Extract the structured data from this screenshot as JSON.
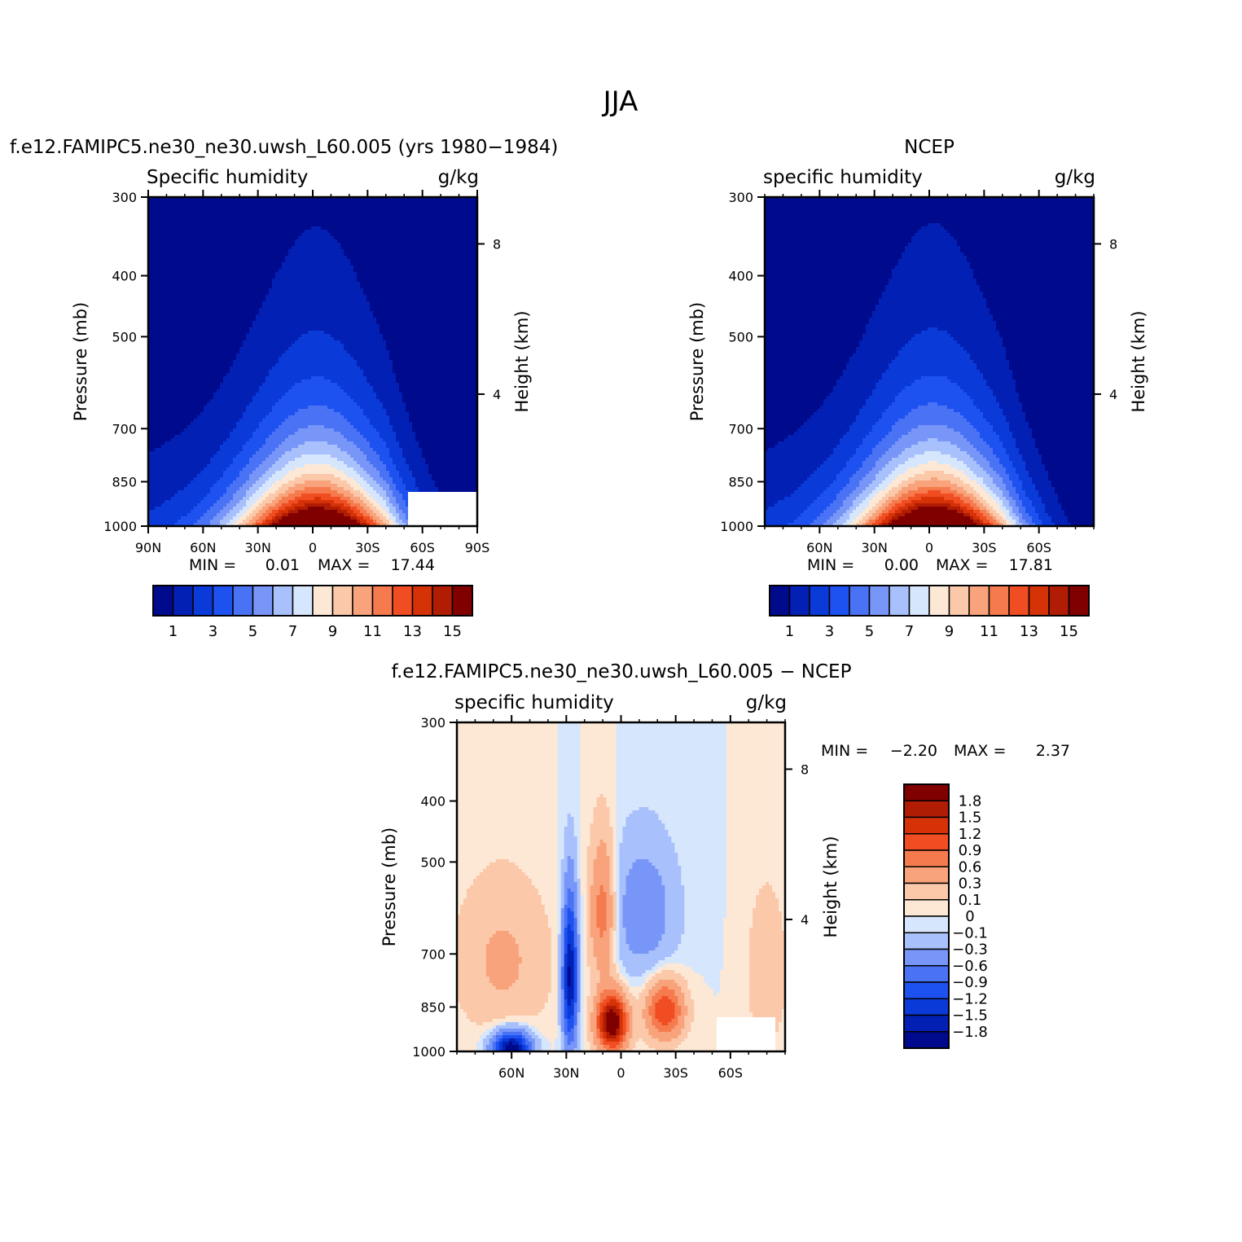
{
  "figure": {
    "title": "JJA"
  },
  "chart_data": [
    {
      "type": "heatmap",
      "id": "model",
      "title": "f.e12.FAMIPC5.ne30_ne30.uwsh_L60.005 (yrs 1980−1984)",
      "left_label": "Specific humidity",
      "right_label": "g/kg",
      "ylabel": "Pressure (mb)",
      "ylabel_right": "Height (km)",
      "x_ticks": [
        "90N",
        "60N",
        "30N",
        "0",
        "30S",
        "60S",
        "90S"
      ],
      "x_tick_lat": [
        90,
        60,
        30,
        0,
        -30,
        -60,
        -90
      ],
      "xlim": [
        90,
        -90
      ],
      "y_ticks": [
        300,
        400,
        500,
        700,
        850,
        1000
      ],
      "ylim": [
        300,
        1000
      ],
      "height_ticks": [
        8,
        4
      ],
      "height_tick_pressure": [
        356,
        617
      ],
      "min_label": "MIN =",
      "min_value": "0.01",
      "max_label": "MAX =",
      "max_value": "17.44",
      "peak": {
        "lat": -3,
        "value": 17.44
      },
      "masked_region": {
        "lat_from": -52,
        "lat_to": -86,
        "p_from": 928
      },
      "colorbar": {
        "levels": [
          1,
          2,
          3,
          4,
          5,
          6,
          7,
          8,
          9,
          10,
          11,
          12,
          13,
          14,
          15
        ],
        "labels": [
          "1",
          "3",
          "5",
          "7",
          "9",
          "11",
          "13",
          "15"
        ],
        "colors": [
          "#000a8c",
          "#0320b4",
          "#0a3ad8",
          "#1e52f0",
          "#4a72f5",
          "#7896f8",
          "#a8c0fb",
          "#d6e6fd",
          "#fde8d6",
          "#fbc8aa",
          "#f8a37c",
          "#f57a4e",
          "#f04e22",
          "#d63208",
          "#b01c04",
          "#800000"
        ]
      }
    },
    {
      "type": "heatmap",
      "id": "obs",
      "title": "NCEP",
      "left_label": "specific humidity",
      "right_label": "g/kg",
      "ylabel": "Pressure (mb)",
      "ylabel_right": "Height (km)",
      "x_ticks": [
        "60N",
        "30N",
        "0",
        "30S",
        "60S"
      ],
      "x_tick_lat": [
        60,
        30,
        0,
        -30,
        -60
      ],
      "xlim": [
        90,
        -90
      ],
      "y_ticks": [
        300,
        400,
        500,
        700,
        850,
        1000
      ],
      "ylim": [
        300,
        1000
      ],
      "height_ticks": [
        8,
        4
      ],
      "height_tick_pressure": [
        356,
        617
      ],
      "min_label": "MIN =",
      "min_value": "0.00",
      "max_label": "MAX =",
      "max_value": "17.81",
      "peak": {
        "lat": -3,
        "value": 17.81
      },
      "colorbar": {
        "levels": [
          1,
          2,
          3,
          4,
          5,
          6,
          7,
          8,
          9,
          10,
          11,
          12,
          13,
          14,
          15
        ],
        "labels": [
          "1",
          "3",
          "5",
          "7",
          "9",
          "11",
          "13",
          "15"
        ],
        "colors": [
          "#000a8c",
          "#0320b4",
          "#0a3ad8",
          "#1e52f0",
          "#4a72f5",
          "#7896f8",
          "#a8c0fb",
          "#d6e6fd",
          "#fde8d6",
          "#fbc8aa",
          "#f8a37c",
          "#f57a4e",
          "#f04e22",
          "#d63208",
          "#b01c04",
          "#800000"
        ]
      }
    },
    {
      "type": "heatmap",
      "id": "diff",
      "title": "f.e12.FAMIPC5.ne30_ne30.uwsh_L60.005 − NCEP",
      "left_label": "specific humidity",
      "right_label": "g/kg",
      "ylabel": "Pressure (mb)",
      "ylabel_right": "Height (km)",
      "x_ticks": [
        "60N",
        "30N",
        "0",
        "30S",
        "60S"
      ],
      "x_tick_lat": [
        60,
        30,
        0,
        -30,
        -60
      ],
      "xlim": [
        90,
        -90
      ],
      "y_ticks": [
        300,
        400,
        500,
        700,
        850,
        1000
      ],
      "ylim": [
        300,
        1000
      ],
      "height_ticks": [
        8,
        4
      ],
      "height_tick_pressure": [
        356,
        617
      ],
      "min_label": "MIN =",
      "min_value": "−2.20",
      "max_label": "MAX =",
      "max_value": "2.37",
      "masked_region": {
        "lat_from": -52,
        "lat_to": -86,
        "p_from": 928
      },
      "colorbar": {
        "levels": [
          -1.8,
          -1.5,
          -1.2,
          -0.9,
          -0.6,
          -0.3,
          -0.1,
          0,
          0.1,
          0.3,
          0.6,
          0.9,
          1.2,
          1.5,
          1.8
        ],
        "labels": [
          "1.8",
          "1.5",
          "1.2",
          "0.9",
          "0.6",
          "0.3",
          "0.1",
          "0",
          "−0.1",
          "−0.3",
          "−0.6",
          "−0.9",
          "−1.2",
          "−1.5",
          "−1.8"
        ],
        "colors": [
          "#000a8c",
          "#0320b4",
          "#0a3ad8",
          "#1e52f0",
          "#4a72f5",
          "#7896f8",
          "#a8c0fb",
          "#d6e6fd",
          "#fde8d6",
          "#fbc8aa",
          "#f8a37c",
          "#f57a4e",
          "#f04e22",
          "#d63208",
          "#b01c04",
          "#800000"
        ]
      }
    }
  ]
}
